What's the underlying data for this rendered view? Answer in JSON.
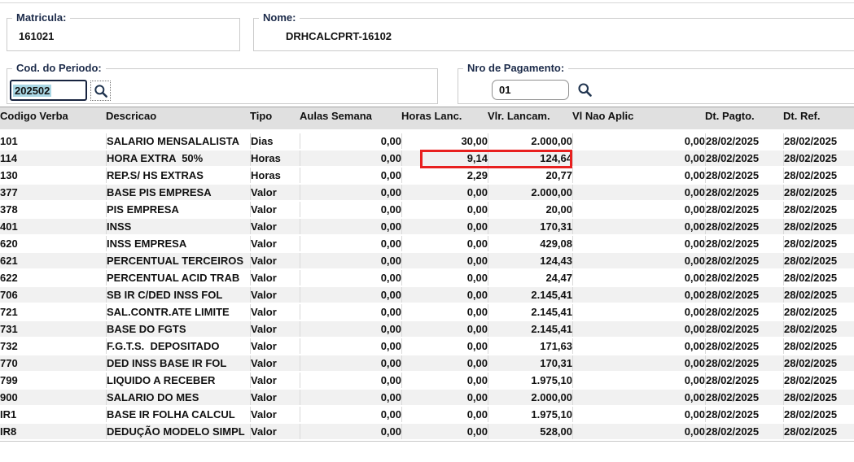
{
  "form": {
    "matricula": {
      "label": "Matricula:",
      "value": "161021"
    },
    "nome": {
      "label": "Nome:",
      "value": "DRHCALCPRT-16102"
    },
    "periodo": {
      "label": "Cod. do Periodo:",
      "value": "202502"
    },
    "pagamento": {
      "label": "Nro de Pagamento:",
      "value": "01"
    }
  },
  "icons": {
    "periodo_search": "search-icon",
    "pagamento_search": "search-icon"
  },
  "table": {
    "columns": [
      "Codigo Verba",
      "Descricao",
      "Tipo",
      "Aulas Semana",
      "Horas Lanc.",
      "Vlr. Lancam.",
      "Vl Nao Aplic",
      "Dt. Pagto.",
      "Dt. Ref."
    ],
    "column_keys": [
      "codigo-verba",
      "descricao",
      "tipo",
      "aulas-semana",
      "horas-lanc",
      "vlr-lancam",
      "vl-nao-aplic",
      "dt-pagto",
      "dt-ref"
    ],
    "rows": [
      [
        "101",
        "SALARIO MENSALALISTA",
        "Dias",
        "0,00",
        "30,00",
        "2.000,00",
        "0,00",
        "28/02/2025",
        "28/02/2025"
      ],
      [
        "114",
        "HORA EXTRA  50%",
        "Horas",
        "0,00",
        "9,14",
        "124,64",
        "0,00",
        "28/02/2025",
        "28/02/2025"
      ],
      [
        "130",
        "REP.S/ HS EXTRAS",
        "Horas",
        "0,00",
        "2,29",
        "20,77",
        "0,00",
        "28/02/2025",
        "28/02/2025"
      ],
      [
        "377",
        "BASE PIS EMPRESA",
        "Valor",
        "0,00",
        "0,00",
        "2.000,00",
        "0,00",
        "28/02/2025",
        "28/02/2025"
      ],
      [
        "378",
        "PIS EMPRESA",
        "Valor",
        "0,00",
        "0,00",
        "20,00",
        "0,00",
        "28/02/2025",
        "28/02/2025"
      ],
      [
        "401",
        "INSS",
        "Valor",
        "0,00",
        "0,00",
        "170,31",
        "0,00",
        "28/02/2025",
        "28/02/2025"
      ],
      [
        "620",
        "INSS EMPRESA",
        "Valor",
        "0,00",
        "0,00",
        "429,08",
        "0,00",
        "28/02/2025",
        "28/02/2025"
      ],
      [
        "621",
        "PERCENTUAL TERCEIROS",
        "Valor",
        "0,00",
        "0,00",
        "124,43",
        "0,00",
        "28/02/2025",
        "28/02/2025"
      ],
      [
        "622",
        "PERCENTUAL ACID TRAB",
        "Valor",
        "0,00",
        "0,00",
        "24,47",
        "0,00",
        "28/02/2025",
        "28/02/2025"
      ],
      [
        "706",
        "SB IR C/DED INSS FOL",
        "Valor",
        "0,00",
        "0,00",
        "2.145,41",
        "0,00",
        "28/02/2025",
        "28/02/2025"
      ],
      [
        "721",
        "SAL.CONTR.ATE LIMITE",
        "Valor",
        "0,00",
        "0,00",
        "2.145,41",
        "0,00",
        "28/02/2025",
        "28/02/2025"
      ],
      [
        "731",
        "BASE DO FGTS",
        "Valor",
        "0,00",
        "0,00",
        "2.145,41",
        "0,00",
        "28/02/2025",
        "28/02/2025"
      ],
      [
        "732",
        "F.G.T.S.  DEPOSITADO",
        "Valor",
        "0,00",
        "0,00",
        "171,63",
        "0,00",
        "28/02/2025",
        "28/02/2025"
      ],
      [
        "770",
        "DED INSS BASE IR FOL",
        "Valor",
        "0,00",
        "0,00",
        "170,31",
        "0,00",
        "28/02/2025",
        "28/02/2025"
      ],
      [
        "799",
        "LIQUIDO A RECEBER",
        "Valor",
        "0,00",
        "0,00",
        "1.975,10",
        "0,00",
        "28/02/2025",
        "28/02/2025"
      ],
      [
        "900",
        "SALARIO DO MES",
        "Valor",
        "0,00",
        "0,00",
        "2.000,00",
        "0,00",
        "28/02/2025",
        "28/02/2025"
      ],
      [
        "IR1",
        "BASE IR FOLHA CALCUL",
        "Valor",
        "0,00",
        "0,00",
        "1.975,10",
        "0,00",
        "28/02/2025",
        "28/02/2025"
      ],
      [
        "IR8",
        "DEDUÇÃO MODELO SIMPL",
        "Valor",
        "0,00",
        "0,00",
        "528,00",
        "0,00",
        "28/02/2025",
        "28/02/2025"
      ]
    ],
    "highlight": {
      "row_code": "114",
      "columns": [
        "Horas Lanc.",
        "Vlr. Lancam."
      ],
      "values": [
        "9,14",
        "124,64"
      ],
      "color": "#e8201f"
    }
  },
  "colors": {
    "label_navy": "#1c2b4a",
    "header_gray": "#e0e0e0",
    "stripe_gray": "#f1f1f1",
    "grid_line": "#d9d9d9",
    "highlight_red": "#e8201f",
    "selection_blue": "#a9d6e4"
  }
}
